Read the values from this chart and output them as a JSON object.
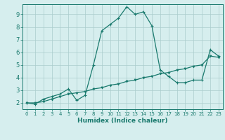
{
  "xlabel": "Humidex (Indice chaleur)",
  "background_color": "#d6eeee",
  "grid_color": "#aacccc",
  "line_color": "#1a7a6e",
  "xlim": [
    -0.5,
    23.5
  ],
  "ylim": [
    1.5,
    9.8
  ],
  "yticks": [
    2,
    3,
    4,
    5,
    6,
    7,
    8,
    9
  ],
  "xticks": [
    0,
    1,
    2,
    3,
    4,
    5,
    6,
    7,
    8,
    9,
    10,
    11,
    12,
    13,
    14,
    15,
    16,
    17,
    18,
    19,
    20,
    21,
    22,
    23
  ],
  "curve1_x": [
    0,
    1,
    2,
    3,
    4,
    5,
    6,
    7,
    8,
    9,
    10,
    11,
    12,
    13,
    14,
    15,
    16,
    17,
    18,
    19,
    20,
    21,
    22,
    23
  ],
  "curve1_y": [
    2.0,
    1.9,
    2.3,
    2.5,
    2.7,
    3.1,
    2.2,
    2.6,
    5.0,
    7.7,
    8.2,
    8.7,
    9.6,
    9.0,
    9.2,
    8.1,
    4.6,
    4.1,
    3.6,
    3.6,
    3.8,
    3.8,
    6.2,
    5.7
  ],
  "curve2_x": [
    0,
    1,
    2,
    3,
    4,
    5,
    6,
    7,
    8,
    9,
    10,
    11,
    12,
    13,
    14,
    15,
    16,
    17,
    18,
    19,
    20,
    21,
    22,
    23
  ],
  "curve2_y": [
    2.0,
    2.0,
    2.1,
    2.3,
    2.5,
    2.7,
    2.8,
    2.9,
    3.1,
    3.2,
    3.4,
    3.5,
    3.7,
    3.8,
    4.0,
    4.1,
    4.3,
    4.4,
    4.6,
    4.7,
    4.9,
    5.0,
    5.7,
    5.6
  ]
}
